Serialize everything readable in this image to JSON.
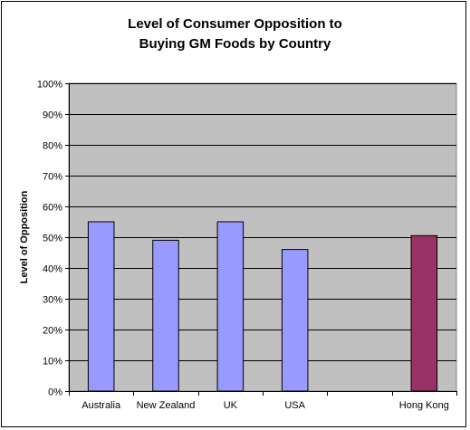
{
  "chart_data": {
    "type": "bar",
    "title_lines": [
      "Level of Consumer Opposition to",
      "Buying GM Foods by Country"
    ],
    "xlabel": "",
    "ylabel": "Level of Opposition",
    "categories": [
      "Australia",
      "New Zealand",
      "UK",
      "USA",
      "",
      "Hong Kong"
    ],
    "values": [
      55,
      49,
      55,
      46,
      null,
      50.5
    ],
    "value_unit": "%",
    "ylim": [
      0,
      100
    ],
    "yticks": [
      0,
      10,
      20,
      30,
      40,
      50,
      60,
      70,
      80,
      90,
      100
    ],
    "ytick_labels": [
      "0%",
      "10%",
      "20%",
      "30%",
      "40%",
      "50%",
      "60%",
      "70%",
      "80%",
      "90%",
      "100%"
    ],
    "grid": true,
    "legend": "none",
    "colors": {
      "plot_background": "#c0c0c0",
      "default_bar": "#9999ff",
      "highlight_bar": "#993366",
      "highlight_category": "Hong Kong",
      "gridline": "#000000"
    }
  }
}
